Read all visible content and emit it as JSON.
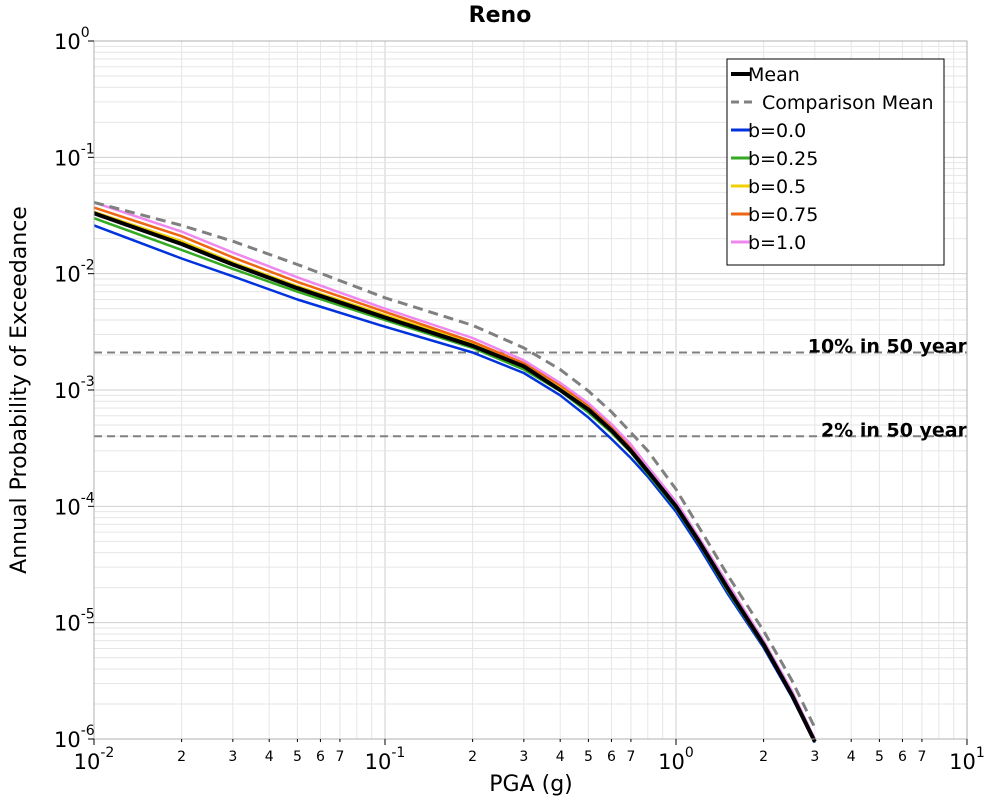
{
  "chart_data": {
    "type": "line",
    "title": "Reno",
    "xlabel": "PGA (g)",
    "ylabel": "Annual Probability of Exceedance",
    "xscale": "log",
    "yscale": "log",
    "xlim": [
      0.01,
      10
    ],
    "ylim": [
      1e-06,
      1
    ],
    "grid": true,
    "legend_position": "top-right",
    "x_major_ticks": [
      {
        "base": "10",
        "exp": "-2"
      },
      {
        "base": "10",
        "exp": "-1"
      },
      {
        "base": "10",
        "exp": "0"
      },
      {
        "base": "10",
        "exp": "1"
      }
    ],
    "y_major_ticks": [
      {
        "base": "10",
        "exp": "-6"
      },
      {
        "base": "10",
        "exp": "-5"
      },
      {
        "base": "10",
        "exp": "-4"
      },
      {
        "base": "10",
        "exp": "-3"
      },
      {
        "base": "10",
        "exp": "-2"
      },
      {
        "base": "10",
        "exp": "-1"
      },
      {
        "base": "10",
        "exp": "0"
      }
    ],
    "x_minor_tick_labels": [
      "2",
      "3",
      "4",
      "5",
      "6",
      "7"
    ],
    "x": [
      0.01,
      0.02,
      0.03,
      0.05,
      0.1,
      0.2,
      0.3,
      0.4,
      0.5,
      0.6,
      0.7,
      0.8,
      1.0,
      1.2,
      1.5,
      2.0,
      2.5,
      3.0
    ],
    "series": [
      {
        "name": "Mean",
        "color": "#000000",
        "dash": "solid",
        "width": 4,
        "values": [
          0.033,
          0.018,
          0.012,
          0.0075,
          0.0042,
          0.0024,
          0.0016,
          0.001,
          0.00068,
          0.00045,
          0.0003,
          0.0002,
          0.0001,
          5e-05,
          2e-05,
          6.5e-06,
          2.4e-06,
          9.5e-07
        ]
      },
      {
        "name": "Comparison Mean",
        "color": "#808080",
        "dash": "dashed",
        "width": 3,
        "values": [
          0.041,
          0.026,
          0.019,
          0.012,
          0.0062,
          0.0036,
          0.0023,
          0.0015,
          0.00098,
          0.00065,
          0.00043,
          0.0003,
          0.00014,
          6.6e-05,
          2.6e-05,
          8.5e-06,
          3.2e-06,
          1.25e-06
        ]
      },
      {
        "name": "b=0.0",
        "color": "#0033dd",
        "dash": "solid",
        "width": 2.5,
        "values": [
          0.026,
          0.0135,
          0.0095,
          0.006,
          0.0035,
          0.0021,
          0.0014,
          0.0009,
          0.00058,
          0.00038,
          0.00026,
          0.00018,
          9e-05,
          4.5e-05,
          1.8e-05,
          6.1e-06,
          2.3e-06,
          9.3e-07
        ]
      },
      {
        "name": "b=0.25",
        "color": "#33aa22",
        "dash": "solid",
        "width": 2.5,
        "values": [
          0.03,
          0.016,
          0.011,
          0.007,
          0.004,
          0.0023,
          0.0015,
          0.00098,
          0.00064,
          0.00043,
          0.00029,
          0.00019,
          9.6e-05,
          4.8e-05,
          1.9e-05,
          6.3e-06,
          2.4e-06,
          9.4e-07
        ]
      },
      {
        "name": "b=0.5",
        "color": "#f0d000",
        "dash": "solid",
        "width": 2.5,
        "values": [
          0.034,
          0.019,
          0.0125,
          0.0078,
          0.0044,
          0.0025,
          0.0016,
          0.00104,
          0.0007,
          0.00046,
          0.00031,
          0.0002,
          0.0001,
          5e-05,
          2e-05,
          6.5e-06,
          2.4e-06,
          9.6e-07
        ]
      },
      {
        "name": "b=0.75",
        "color": "#ee6611",
        "dash": "solid",
        "width": 2.5,
        "values": [
          0.037,
          0.021,
          0.0138,
          0.0085,
          0.0047,
          0.0026,
          0.0017,
          0.0011,
          0.00074,
          0.00049,
          0.00033,
          0.00021,
          0.000105,
          5.2e-05,
          2.1e-05,
          6.7e-06,
          2.5e-06,
          9.8e-07
        ]
      },
      {
        "name": "b=1.0",
        "color": "#ee88ee",
        "dash": "solid",
        "width": 2.5,
        "values": [
          0.041,
          0.023,
          0.0152,
          0.0093,
          0.005,
          0.0028,
          0.0018,
          0.00115,
          0.00077,
          0.00051,
          0.00034,
          0.00022,
          0.00011,
          5.4e-05,
          2.2e-05,
          7e-06,
          2.6e-06,
          1e-06
        ]
      }
    ],
    "reference_lines": [
      {
        "label": "10% in 50 year",
        "y": 0.0021,
        "color": "#808080",
        "dash": "dashed"
      },
      {
        "label": "2% in 50 year",
        "y": 0.0004,
        "color": "#808080",
        "dash": "dashed"
      }
    ]
  }
}
